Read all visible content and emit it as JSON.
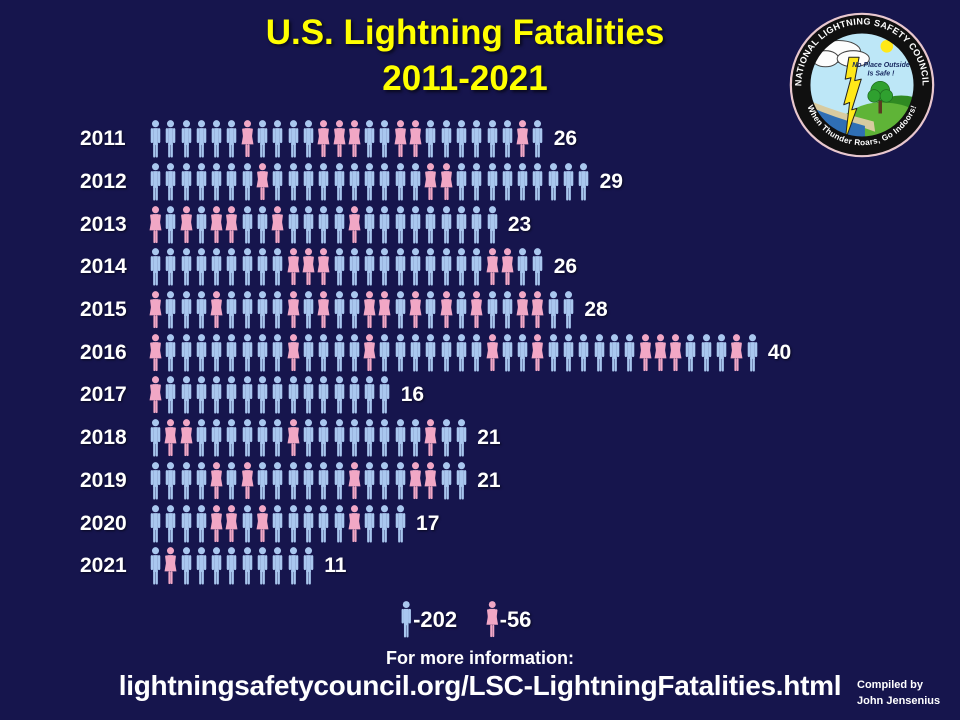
{
  "title": {
    "line1": "U.S. Lightning Fatalities",
    "line2": "2011-2021"
  },
  "logo": {
    "ring_text_top": "NATIONAL LIGHTNING SAFETY COUNCIL",
    "ring_text_bottom": "When Thunder Roars, Go Indoors!",
    "inner_text_line1": "No Place Outside",
    "inner_text_line2": "Is Safe !"
  },
  "colors": {
    "background": "#16154D",
    "title": "#FFFF00",
    "male": "#A9C7EF",
    "female": "#F1A7C5",
    "text": "#FFFFFF"
  },
  "chart_data": {
    "type": "pictogram-bar",
    "title": "U.S. Lightning Fatalities 2011-2021",
    "categories": [
      "2011",
      "2012",
      "2013",
      "2014",
      "2015",
      "2016",
      "2017",
      "2018",
      "2019",
      "2020",
      "2021"
    ],
    "totals": [
      26,
      29,
      23,
      26,
      28,
      40,
      16,
      21,
      21,
      17,
      11
    ],
    "series": [
      {
        "name": "Male",
        "color": "#A9C7EF",
        "values": [
          19,
          26,
          17,
          21,
          17,
          31,
          15,
          17,
          16,
          13,
          10
        ]
      },
      {
        "name": "Female",
        "color": "#F1A7C5",
        "values": [
          7,
          3,
          6,
          5,
          11,
          9,
          1,
          4,
          5,
          4,
          1
        ]
      }
    ],
    "rows": [
      {
        "year": "2011",
        "count": "26",
        "sequence": "MMMMMMFMMMMFFFMMFFMMMMMMFM"
      },
      {
        "year": "2012",
        "count": "29",
        "sequence": "MMMMMMMFMMMMMMMMMMFFMMMMMMMMM"
      },
      {
        "year": "2013",
        "count": "23",
        "sequence": "FMFMFFMMFMMMMFMMMMMMMMM"
      },
      {
        "year": "2014",
        "count": "26",
        "sequence": "MMMMMMMMMFFFMMMMMMMMMMFFMM"
      },
      {
        "year": "2015",
        "count": "28",
        "sequence": "FMMMFMMMMFMFMMFFMFMFMFMMFFMM"
      },
      {
        "year": "2016",
        "count": "40",
        "sequence": "FMMMMMMMMFMMMMFMMMMMMMFMMFMMMMMMFFFMMMFM"
      },
      {
        "year": "2017",
        "count": "16",
        "sequence": "FMMMMMMMMMMMMMMM"
      },
      {
        "year": "2018",
        "count": "21",
        "sequence": "MFFMMMMMMFMMMMMMMMFMM"
      },
      {
        "year": "2019",
        "count": "21",
        "sequence": "MMMMFMFMMMMMMFMMMFFMM"
      },
      {
        "year": "2020",
        "count": "17",
        "sequence": "MMMMFFMFMMMMMFMMM"
      },
      {
        "year": "2021",
        "count": "11",
        "sequence": "MFMMMMMMMMM"
      }
    ],
    "legend": {
      "male_label": "-202",
      "female_label": "-56",
      "male_total": 202,
      "female_total": 56
    },
    "layout": {
      "icon_unit": 1,
      "legend_position": "bottom-center"
    }
  },
  "footer": {
    "info": "For more information:",
    "url": "lightningsafetycouncil.org/LSC-LightningFatalities.html",
    "compiled_line1": "Compiled by",
    "compiled_line2": "John Jensenius"
  }
}
